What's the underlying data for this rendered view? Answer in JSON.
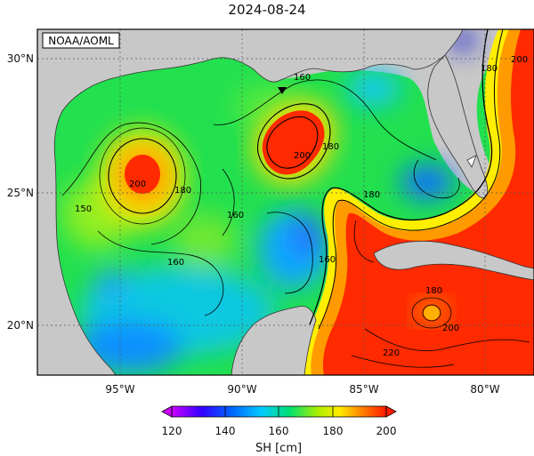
{
  "title": "2024-08-24",
  "credit": "NOAA/AOML",
  "lat_labels": [
    "30°N",
    "25°N",
    "20°N"
  ],
  "lon_labels": [
    "95°W",
    "90°W",
    "85°W",
    "80°W"
  ],
  "colorbar": {
    "label": "SH [cm]",
    "ticks": [
      "120",
      "140",
      "160",
      "180",
      "200"
    ],
    "min": 115,
    "max": 205,
    "colors": [
      "#cc00ff",
      "#1a1aff",
      "#00bfff",
      "#00e070",
      "#aaee00",
      "#ffff00",
      "#ff9900",
      "#ff2200"
    ]
  },
  "contour_labels": [
    {
      "text": "160"
    },
    {
      "text": "180"
    },
    {
      "text": "200"
    },
    {
      "text": "180"
    },
    {
      "text": "200"
    },
    {
      "text": "180"
    },
    {
      "text": "150"
    },
    {
      "text": "160"
    },
    {
      "text": "160"
    },
    {
      "text": "160"
    },
    {
      "text": "180"
    },
    {
      "text": "180"
    },
    {
      "text": "200"
    },
    {
      "text": "200"
    },
    {
      "text": "220"
    }
  ]
}
